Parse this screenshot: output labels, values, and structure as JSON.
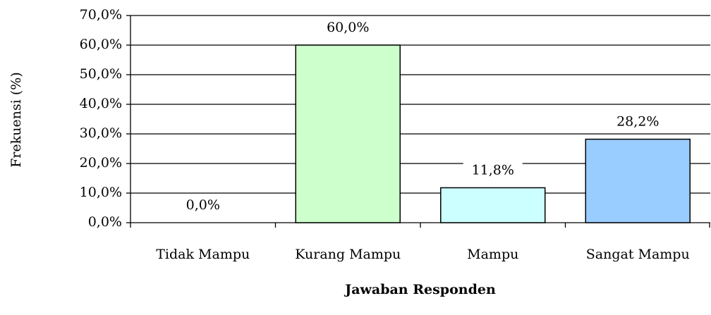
{
  "chart_data": {
    "type": "bar",
    "x_label": "Jawaban Responden",
    "y_label": "Frekuensi (%)",
    "categories": [
      "Tidak Mampu",
      "Kurang Mampu",
      "Mampu",
      "Sangat Mampu"
    ],
    "values": [
      0.0,
      60.0,
      11.8,
      28.2
    ],
    "value_labels": [
      "0,0%",
      "60,0%",
      "11,8%",
      "28,2%"
    ],
    "colors": [
      "#ffffff",
      "#ccffcc",
      "#ccffff",
      "#99ccff"
    ],
    "ylim": [
      0,
      70
    ],
    "yticks": [
      {
        "value": 0,
        "label": "0,0%"
      },
      {
        "value": 10,
        "label": "10,0%"
      },
      {
        "value": 20,
        "label": "20,0%"
      },
      {
        "value": 30,
        "label": "30,0%"
      },
      {
        "value": 40,
        "label": "40,0%"
      },
      {
        "value": 50,
        "label": "50,0%"
      },
      {
        "value": 60,
        "label": "60,0%"
      },
      {
        "value": 70,
        "label": "70,0%"
      }
    ],
    "grid": true
  }
}
